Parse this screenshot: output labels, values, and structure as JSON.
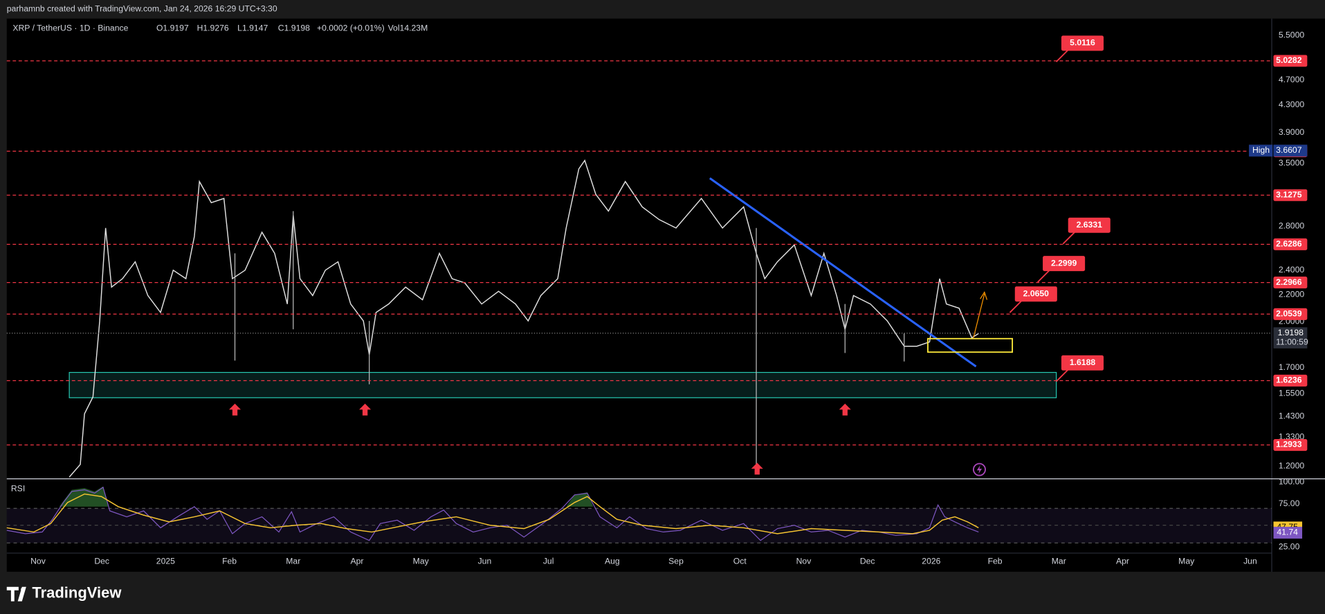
{
  "header": {
    "attribution": "parhamnb created with TradingView.com, Jan 24, 2026 16:29 UTC+3:30"
  },
  "legend": {
    "symbol": "XRP / TetherUS · 1D · Binance",
    "ohlc": [
      "O1.9197",
      "H1.9276",
      "L1.9147",
      "C1.9198"
    ],
    "change": "+0.0002 (+0.01%)",
    "volume": "Vol14.23M"
  },
  "price_axis": {
    "ticks": [
      "5.5000",
      "4.7000",
      "4.3000",
      "3.9000",
      "3.5000",
      "2.8000",
      "2.4000",
      "2.2000",
      "2.0000",
      "1.7000",
      "1.5500",
      "1.4300",
      "1.3300",
      "1.2000"
    ]
  },
  "levels": [
    "5.0282",
    "3.6536",
    "3.1275",
    "2.6286",
    "2.2966",
    "2.0539",
    "1.6236",
    "1.2933"
  ],
  "callouts": [
    "5.0116",
    "2.6331",
    "2.2999",
    "2.0650",
    "1.6188"
  ],
  "high": {
    "label": "High",
    "value": "3.6607"
  },
  "last_price": {
    "price": "1.9198",
    "countdown": "11:00:59"
  },
  "rsi": {
    "title": "RSI",
    "ticks": [
      "100.00",
      "75.00",
      "25.00"
    ],
    "ma": "47.75",
    "value": "41.74"
  },
  "time_axis": [
    "Nov",
    "Dec",
    "2025",
    "Feb",
    "Mar",
    "Apr",
    "May",
    "Jun",
    "Jul",
    "Aug",
    "Sep",
    "Oct",
    "Nov",
    "Dec",
    "2026",
    "Feb",
    "Mar",
    "Apr",
    "May",
    "Jun"
  ],
  "footer": {
    "brand": "TradingView"
  }
}
